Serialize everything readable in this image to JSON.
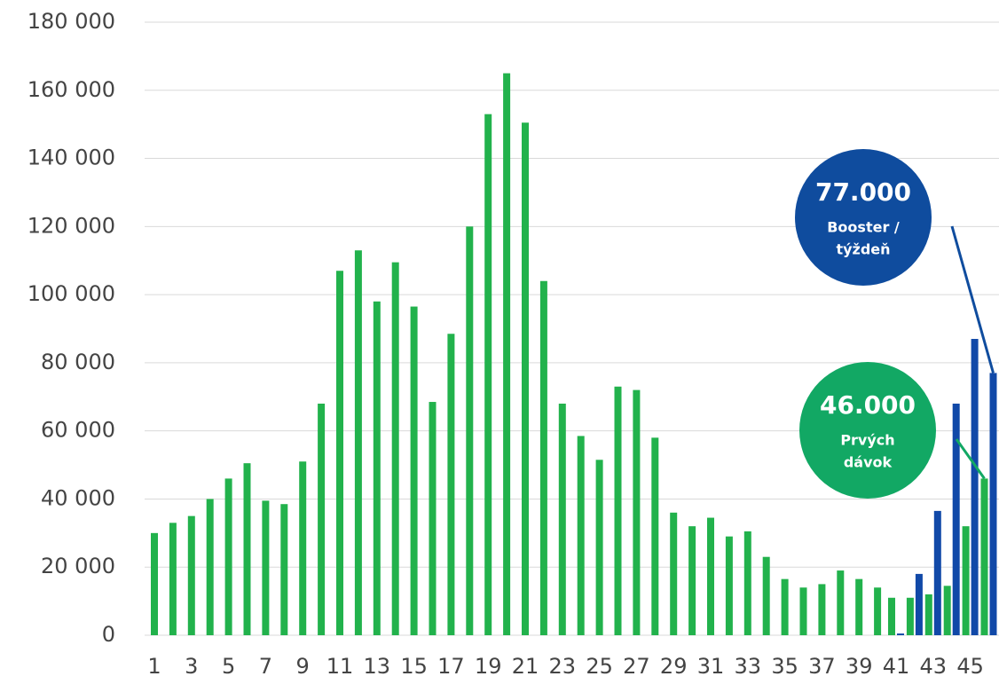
{
  "chart_data": {
    "type": "bar",
    "categories": [
      "1",
      null,
      "3",
      null,
      "5",
      null,
      "7",
      null,
      "9",
      null,
      "11",
      null,
      "13",
      null,
      "15",
      null,
      "17",
      null,
      "19",
      null,
      "21",
      null,
      "23",
      null,
      "25",
      null,
      "27",
      null,
      "29",
      null,
      "31",
      null,
      "33",
      null,
      "35",
      null,
      "37",
      null,
      "39",
      null,
      "41",
      null,
      "43",
      null,
      "45",
      null
    ],
    "series": [
      {
        "name": "Prvé dávky",
        "color": "#22b24c",
        "values": [
          30000,
          33000,
          35000,
          40000,
          46000,
          50500,
          39500,
          38500,
          51000,
          68000,
          107000,
          113000,
          98000,
          109500,
          96500,
          68500,
          88500,
          120000,
          153000,
          165000,
          150500,
          104000,
          68000,
          58500,
          51500,
          73000,
          72000,
          58000,
          36000,
          32000,
          34500,
          29000,
          30500,
          23000,
          16500,
          14000,
          15000,
          19000,
          16500,
          14000,
          11000,
          11000,
          12000,
          14500,
          32000,
          46000
        ]
      },
      {
        "name": "Booster",
        "color": "#1149a8",
        "values": [
          null,
          null,
          null,
          null,
          null,
          null,
          null,
          null,
          null,
          null,
          null,
          null,
          null,
          null,
          null,
          null,
          null,
          null,
          null,
          null,
          null,
          null,
          null,
          null,
          null,
          null,
          null,
          null,
          null,
          null,
          null,
          null,
          null,
          null,
          null,
          null,
          null,
          null,
          null,
          null,
          500,
          18000,
          36500,
          68000,
          87000,
          77000
        ]
      }
    ],
    "ylim": [
      0,
      180000
    ],
    "yticks": [
      0,
      {
        "value": 20000,
        "label": "20 000"
      },
      {
        "value": 40000,
        "label": "40 000"
      },
      {
        "value": 60000,
        "label": "60 000"
      },
      {
        "value": 80000,
        "label": "80 000"
      },
      {
        "value": 100000,
        "label": "100 000"
      },
      {
        "value": 120000,
        "label": "120 000"
      },
      {
        "value": 140000,
        "label": "140 000"
      },
      {
        "value": 160000,
        "label": "160 000"
      },
      {
        "value": 180000,
        "label": "180 000"
      }
    ],
    "grid": true,
    "annotations": [
      {
        "value_label": "77.000",
        "lines": [
          "Booster /",
          "týždeň"
        ],
        "color": "#0f4c9e"
      },
      {
        "value_label": "46.000",
        "lines": [
          "Prvých",
          "dávok"
        ],
        "color": "#12a864"
      }
    ]
  }
}
